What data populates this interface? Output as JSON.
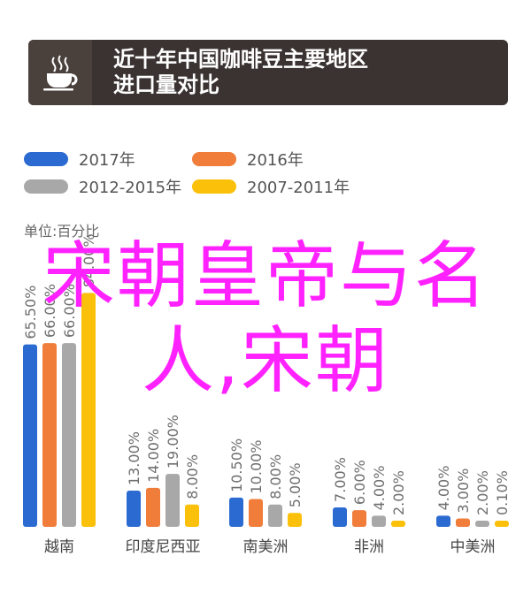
{
  "header": {
    "title_line1": "近十年中国咖啡豆主要地区",
    "title_line2": "进口量对比",
    "icon": "coffee-cup-icon"
  },
  "legend": [
    {
      "label": "2017年",
      "color": "#2b6bd1"
    },
    {
      "label": "2016年",
      "color": "#f07d3a"
    },
    {
      "label": "2012-2015年",
      "color": "#a8a8a8"
    },
    {
      "label": "2007-2011年",
      "color": "#fbc00a"
    }
  ],
  "unit_label": "单位:百分比",
  "overlay": {
    "line1": "宋朝皇帝与名",
    "line2": "人,宋朝"
  },
  "chart_data": {
    "type": "bar",
    "categories": [
      "越南",
      "印度尼西亚",
      "南美洲",
      "非洲",
      "中美洲"
    ],
    "series": [
      {
        "name": "2017年",
        "color": "#2b6bd1",
        "values": [
          65.5,
          13.0,
          10.5,
          7.0,
          4.0
        ],
        "labels": [
          "65.50%",
          "13.00%",
          "10.50%",
          "7.00%",
          "4.00%"
        ]
      },
      {
        "name": "2016年",
        "color": "#f07d3a",
        "values": [
          66.0,
          14.0,
          10.0,
          6.0,
          3.0
        ],
        "labels": [
          "66.00%",
          "14.00%",
          "10.00%",
          "6.00%",
          "3.00%"
        ]
      },
      {
        "name": "2012-2015年",
        "color": "#a8a8a8",
        "values": [
          66.0,
          19.0,
          8.0,
          4.0,
          2.0
        ],
        "labels": [
          "66.00%",
          "19.00%",
          "8.00%",
          "4.00%",
          "2.00%"
        ]
      },
      {
        "name": "2007-2011年",
        "color": "#fbc00a",
        "values": [
          84.0,
          8.0,
          5.0,
          2.0,
          0.1
        ],
        "labels": [
          "84.00%",
          "8.00%",
          "5.00%",
          "2.00%",
          "0.10%"
        ]
      }
    ],
    "ylim": [
      0,
      100
    ]
  }
}
